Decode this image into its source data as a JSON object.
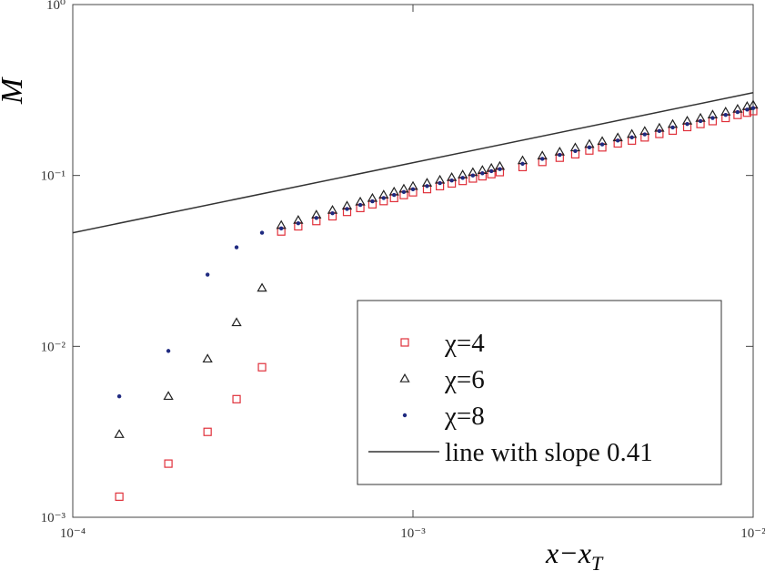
{
  "chart_data": {
    "type": "scatter",
    "ylabel": "M",
    "xlabel": {
      "text": "x−x",
      "subscript": "T"
    },
    "xscale": "log",
    "yscale": "log",
    "xlim": [
      0.0001,
      0.01
    ],
    "ylim": [
      0.001,
      1
    ],
    "xticks": [
      {
        "value": 0.0001,
        "label": "10⁻⁴"
      },
      {
        "value": 0.001,
        "label": "10⁻³"
      },
      {
        "value": 0.01,
        "label": "10⁻²"
      }
    ],
    "yticks": [
      {
        "value": 0.001,
        "label": "10⁻³"
      },
      {
        "value": 0.01,
        "label": "10⁻²"
      },
      {
        "value": 0.1,
        "label": "10⁻¹"
      },
      {
        "value": 1,
        "label": "10⁰"
      }
    ],
    "x": [
      0.000137,
      0.000191,
      0.000249,
      0.000303,
      0.00036,
      0.00041,
      0.00046,
      0.00052,
      0.00058,
      0.00064,
      0.0007,
      0.00076,
      0.00082,
      0.00088,
      0.00094,
      0.001,
      0.0011,
      0.0012,
      0.0013,
      0.0014,
      0.0015,
      0.0016,
      0.0017,
      0.0018,
      0.0021,
      0.0024,
      0.0027,
      0.003,
      0.0033,
      0.0036,
      0.004,
      0.0044,
      0.0048,
      0.0053,
      0.0058,
      0.0064,
      0.007,
      0.0076,
      0.0083,
      0.009,
      0.0096,
      0.01
    ],
    "series": [
      {
        "name": "χ=4",
        "marker": "square",
        "color": "#e0303a",
        "values": [
          0.00132,
          0.00206,
          0.00316,
          0.00491,
          0.00755,
          0.047,
          0.0504,
          0.0541,
          0.0577,
          0.0612,
          0.0645,
          0.0678,
          0.0708,
          0.0738,
          0.0768,
          0.0797,
          0.0832,
          0.0866,
          0.0898,
          0.0929,
          0.096,
          0.0989,
          0.1018,
          0.1046,
          0.112,
          0.12,
          0.127,
          0.133,
          0.14,
          0.146,
          0.154,
          0.16,
          0.167,
          0.175,
          0.183,
          0.192,
          0.2,
          0.208,
          0.217,
          0.226,
          0.233,
          0.238
        ]
      },
      {
        "name": "χ=6",
        "marker": "triangle",
        "color": "#222222",
        "values": [
          0.00305,
          0.0051,
          0.00843,
          0.01375,
          0.0219,
          0.051,
          0.0546,
          0.0587,
          0.0625,
          0.0662,
          0.0699,
          0.0734,
          0.0768,
          0.08,
          0.0832,
          0.0863,
          0.0902,
          0.0938,
          0.0972,
          0.1007,
          0.104,
          0.107,
          0.11,
          0.113,
          0.122,
          0.13,
          0.137,
          0.145,
          0.152,
          0.158,
          0.166,
          0.174,
          0.181,
          0.189,
          0.199,
          0.208,
          0.216,
          0.226,
          0.235,
          0.244,
          0.253,
          0.258
        ]
      },
      {
        "name": "χ=8",
        "marker": "dot",
        "color": "#1f2a80",
        "values": [
          0.0051,
          0.0094,
          0.0263,
          0.038,
          0.0462,
          0.049,
          0.0525,
          0.0564,
          0.0601,
          0.0637,
          0.0672,
          0.0706,
          0.0738,
          0.0769,
          0.08,
          0.083,
          0.0867,
          0.0902,
          0.0935,
          0.0968,
          0.1,
          0.103,
          0.106,
          0.109,
          0.117,
          0.125,
          0.132,
          0.139,
          0.146,
          0.152,
          0.16,
          0.167,
          0.174,
          0.182,
          0.191,
          0.2,
          0.208,
          0.217,
          0.226,
          0.235,
          0.243,
          0.248
        ]
      },
      {
        "name": "line with slope 0.41",
        "marker": "line",
        "color": "#333333",
        "x": [
          0.0001,
          0.01
        ],
        "values": [
          0.0462,
          0.305
        ]
      }
    ],
    "legend": "lower right"
  }
}
